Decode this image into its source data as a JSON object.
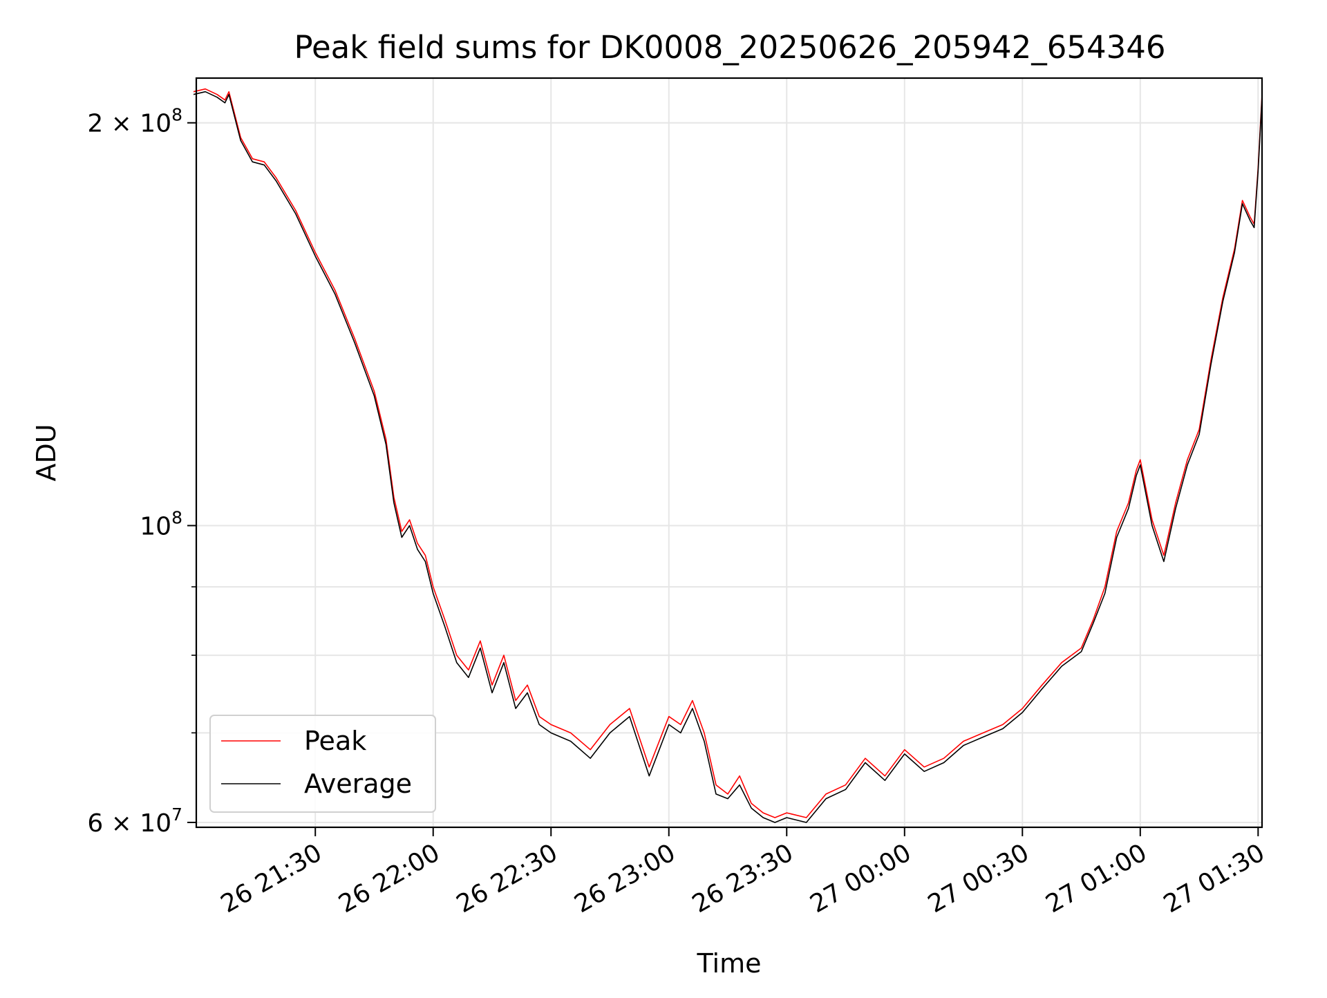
{
  "chart_data": {
    "type": "line",
    "title": "Peak field sums for DK0008_20250626_205942_654346",
    "xlabel": "Time",
    "ylabel": "ADU",
    "y_scale": "log",
    "ylim": [
      59500000,
      216000000
    ],
    "xlim": [
      "2025-06-26 20:59:42",
      "2025-06-27 01:31:00"
    ],
    "x_tick_labels": [
      "26 21:30",
      "26 22:00",
      "26 22:30",
      "26 23:00",
      "26 23:30",
      "27 00:00",
      "27 00:30",
      "27 01:00",
      "27 01:30"
    ],
    "x_ticks": [
      "2025-06-26 21:30",
      "2025-06-26 22:00",
      "2025-06-26 22:30",
      "2025-06-26 23:00",
      "2025-06-26 23:30",
      "2025-06-27 00:00",
      "2025-06-27 00:30",
      "2025-06-27 01:00",
      "2025-06-27 01:30"
    ],
    "y_major_ticks": [
      {
        "value": 60000000,
        "mantissa": "6",
        "exponent": "7"
      },
      {
        "value": 100000000,
        "mantissa": "",
        "exponent": "8"
      },
      {
        "value": 200000000,
        "mantissa": "2",
        "exponent": "8"
      }
    ],
    "y_minor_ticks": [
      70000000,
      80000000,
      90000000
    ],
    "grid": true,
    "legend": {
      "position": "lower-left",
      "entries": [
        "Peak",
        "Average"
      ]
    },
    "x": [
      "2025-06-26 20:59",
      "2025-06-26 21:02",
      "2025-06-26 21:05",
      "2025-06-26 21:07",
      "2025-06-26 21:08",
      "2025-06-26 21:11",
      "2025-06-26 21:14",
      "2025-06-26 21:17",
      "2025-06-26 21:20",
      "2025-06-26 21:25",
      "2025-06-26 21:30",
      "2025-06-26 21:35",
      "2025-06-26 21:40",
      "2025-06-26 21:45",
      "2025-06-26 21:48",
      "2025-06-26 21:50",
      "2025-06-26 21:52",
      "2025-06-26 21:54",
      "2025-06-26 21:56",
      "2025-06-26 21:58",
      "2025-06-26 22:00",
      "2025-06-26 22:03",
      "2025-06-26 22:06",
      "2025-06-26 22:09",
      "2025-06-26 22:12",
      "2025-06-26 22:15",
      "2025-06-26 22:18",
      "2025-06-26 22:21",
      "2025-06-26 22:24",
      "2025-06-26 22:27",
      "2025-06-26 22:30",
      "2025-06-26 22:35",
      "2025-06-26 22:40",
      "2025-06-26 22:45",
      "2025-06-26 22:50",
      "2025-06-26 22:55",
      "2025-06-26 23:00",
      "2025-06-26 23:03",
      "2025-06-26 23:06",
      "2025-06-26 23:09",
      "2025-06-26 23:12",
      "2025-06-26 23:15",
      "2025-06-26 23:18",
      "2025-06-26 23:21",
      "2025-06-26 23:24",
      "2025-06-26 23:27",
      "2025-06-26 23:30",
      "2025-06-26 23:35",
      "2025-06-26 23:40",
      "2025-06-26 23:45",
      "2025-06-26 23:50",
      "2025-06-26 23:55",
      "2025-06-27 00:00",
      "2025-06-27 00:05",
      "2025-06-27 00:10",
      "2025-06-27 00:15",
      "2025-06-27 00:20",
      "2025-06-27 00:25",
      "2025-06-27 00:30",
      "2025-06-27 00:35",
      "2025-06-27 00:40",
      "2025-06-27 00:45",
      "2025-06-27 00:48",
      "2025-06-27 00:51",
      "2025-06-27 00:54",
      "2025-06-27 00:57",
      "2025-06-27 00:59",
      "2025-06-27 01:00",
      "2025-06-27 01:03",
      "2025-06-27 01:06",
      "2025-06-27 01:09",
      "2025-06-27 01:12",
      "2025-06-27 01:15",
      "2025-06-27 01:18",
      "2025-06-27 01:21",
      "2025-06-27 01:24",
      "2025-06-27 01:26",
      "2025-06-27 01:28",
      "2025-06-27 01:29",
      "2025-06-27 01:30",
      "2025-06-27 01:31"
    ],
    "series": [
      {
        "name": "Peak",
        "color": "#ff0000",
        "values": [
          211000000,
          212000000,
          210000000,
          208000000,
          211000000,
          195000000,
          188000000,
          187000000,
          182000000,
          172000000,
          160000000,
          150000000,
          138000000,
          126000000,
          116000000,
          105000000,
          99000000,
          101000000,
          97000000,
          95000000,
          90000000,
          85000000,
          80000000,
          78000000,
          82000000,
          76000000,
          80000000,
          74000000,
          76000000,
          72000000,
          71000000,
          70000000,
          68000000,
          71000000,
          73000000,
          66000000,
          72000000,
          71000000,
          74000000,
          70000000,
          64000000,
          63000000,
          65000000,
          62000000,
          61000000,
          60500000,
          61000000,
          60500000,
          63000000,
          64000000,
          67000000,
          65000000,
          68000000,
          66000000,
          67000000,
          69000000,
          70000000,
          71000000,
          73000000,
          76000000,
          79000000,
          81000000,
          85000000,
          90000000,
          99000000,
          104000000,
          110000000,
          112000000,
          101000000,
          95000000,
          104000000,
          112000000,
          118000000,
          133000000,
          148000000,
          161000000,
          175000000,
          170000000,
          168000000,
          185000000,
          210000000
        ]
      },
      {
        "name": "Average",
        "color": "#000000",
        "values": [
          210000000,
          211000000,
          209000000,
          207000000,
          210000000,
          194000000,
          187000000,
          186000000,
          181000000,
          171000000,
          159000000,
          149000000,
          137000000,
          125000000,
          115000000,
          104000000,
          98000000,
          100000000,
          96000000,
          94000000,
          89000000,
          84000000,
          79000000,
          77000000,
          81000000,
          75000000,
          79000000,
          73000000,
          75000000,
          71000000,
          70000000,
          69000000,
          67000000,
          70000000,
          72000000,
          65000000,
          71000000,
          70000000,
          73000000,
          69000000,
          63000000,
          62500000,
          64000000,
          61500000,
          60500000,
          60000000,
          60500000,
          60000000,
          62500000,
          63500000,
          66500000,
          64500000,
          67500000,
          65500000,
          66500000,
          68500000,
          69500000,
          70500000,
          72500000,
          75500000,
          78500000,
          80500000,
          84500000,
          89000000,
          98000000,
          103000000,
          109000000,
          111000000,
          100000000,
          94000000,
          103000000,
          111000000,
          117000000,
          132000000,
          147000000,
          160000000,
          174000000,
          169000000,
          167000000,
          184000000,
          209000000
        ]
      }
    ]
  }
}
